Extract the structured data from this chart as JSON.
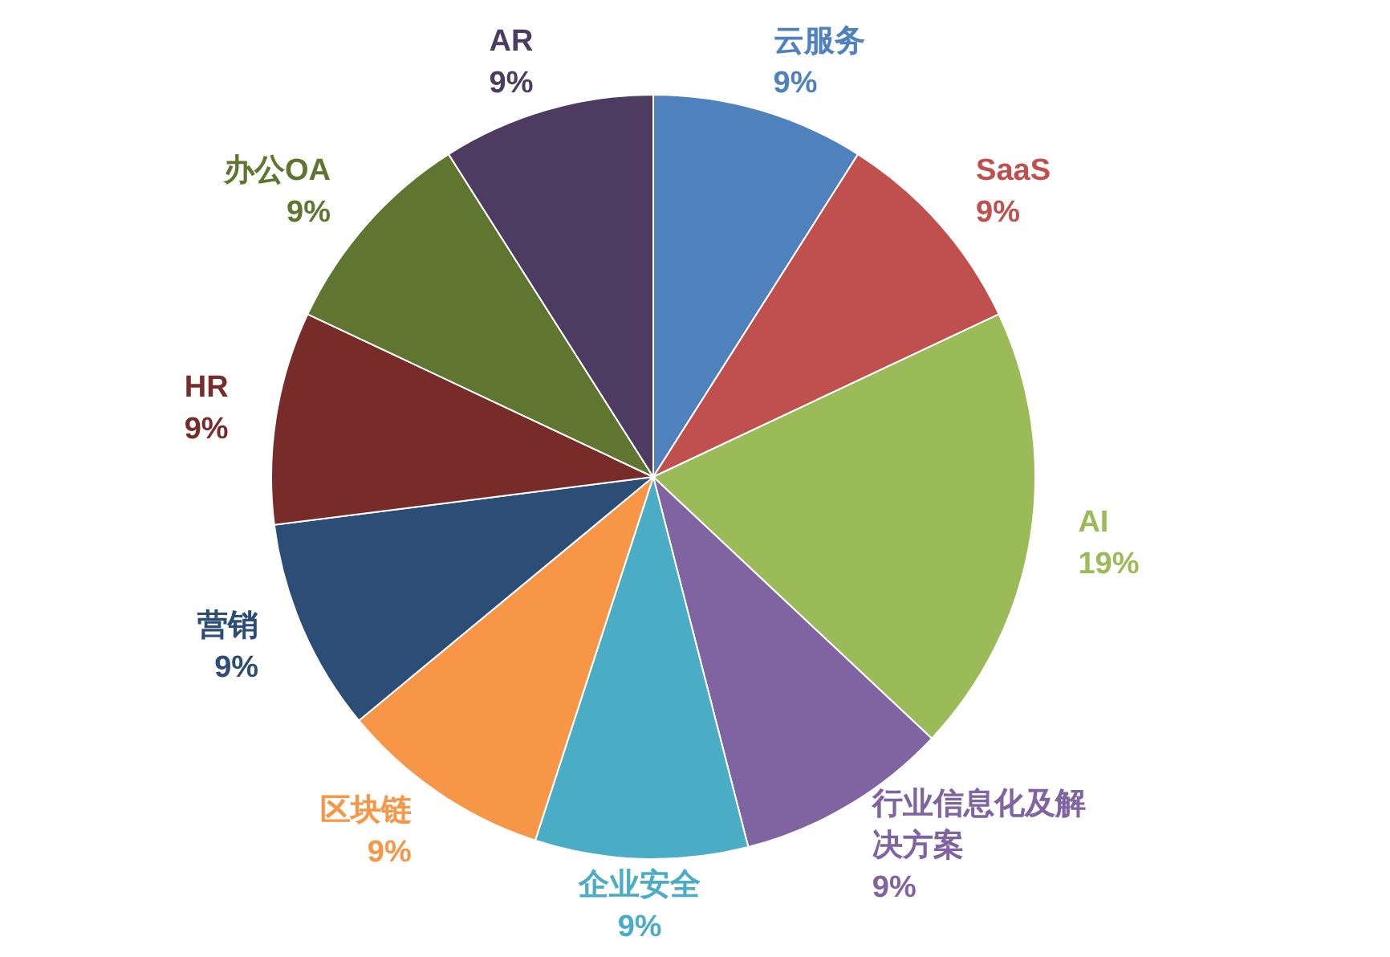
{
  "chart_data": {
    "type": "pie",
    "categories": [
      "云服务",
      "SaaS",
      "AI",
      "行业信息化及解决方案",
      "企业安全",
      "区块链",
      "营销",
      "HR",
      "办公OA",
      "AR"
    ],
    "values": [
      9,
      9,
      19,
      9,
      9,
      9,
      9,
      9,
      9,
      9
    ],
    "colors": [
      "#4f81bd",
      "#c0504d",
      "#9bbb59",
      "#8064a2",
      "#4bacc6",
      "#f79646",
      "#2c4d75",
      "#772c2a",
      "#5f7530",
      "#4d3b62"
    ],
    "value_labels": [
      "9%",
      "9%",
      "19%",
      "9%",
      "9%",
      "9%",
      "9%",
      "9%",
      "9%",
      "9%"
    ]
  }
}
